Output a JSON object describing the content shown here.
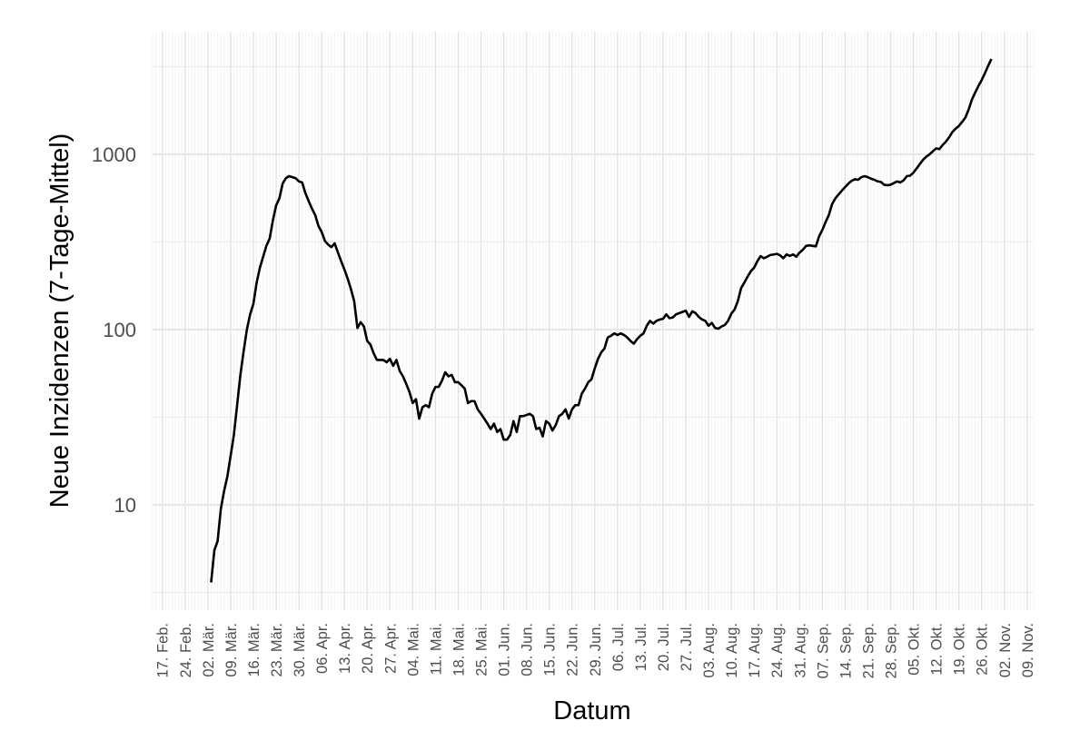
{
  "chart_data": {
    "type": "line",
    "x_label": "Datum",
    "y_label": "Neue Inzidenzen (7-Tage-Mittel)",
    "log_y": true,
    "grid": true,
    "color": "#000000",
    "xlim": [
      "02-14",
      "11-11"
    ],
    "ylim": [
      2.5,
      5000
    ],
    "yticks": [
      10,
      100,
      1000
    ],
    "minor_yticks": [
      3.16,
      31.6,
      316,
      3162
    ],
    "xticks": [
      {
        "value": "02-17",
        "label": "17. Feb."
      },
      {
        "value": "02-24",
        "label": "24. Feb."
      },
      {
        "value": "03-02",
        "label": "02. Mär."
      },
      {
        "value": "03-09",
        "label": "09. Mär."
      },
      {
        "value": "03-16",
        "label": "16. Mär."
      },
      {
        "value": "03-23",
        "label": "23. Mär."
      },
      {
        "value": "03-30",
        "label": "30. Mär."
      },
      {
        "value": "04-06",
        "label": "06. Apr."
      },
      {
        "value": "04-13",
        "label": "13. Apr."
      },
      {
        "value": "04-20",
        "label": "20. Apr."
      },
      {
        "value": "04-27",
        "label": "27. Apr."
      },
      {
        "value": "05-04",
        "label": "04. Mai."
      },
      {
        "value": "05-11",
        "label": "11. Mai."
      },
      {
        "value": "05-18",
        "label": "18. Mai."
      },
      {
        "value": "05-25",
        "label": "25. Mai."
      },
      {
        "value": "06-01",
        "label": "01. Jun."
      },
      {
        "value": "06-08",
        "label": "08. Jun."
      },
      {
        "value": "06-15",
        "label": "15. Jun."
      },
      {
        "value": "06-22",
        "label": "22. Jun."
      },
      {
        "value": "06-29",
        "label": "29. Jun."
      },
      {
        "value": "07-06",
        "label": "06. Jul."
      },
      {
        "value": "07-13",
        "label": "13. Jul."
      },
      {
        "value": "07-20",
        "label": "20. Jul."
      },
      {
        "value": "07-27",
        "label": "27. Jul."
      },
      {
        "value": "08-03",
        "label": "03. Aug."
      },
      {
        "value": "08-10",
        "label": "10. Aug."
      },
      {
        "value": "08-17",
        "label": "17. Aug."
      },
      {
        "value": "08-24",
        "label": "24. Aug."
      },
      {
        "value": "08-31",
        "label": "31. Aug."
      },
      {
        "value": "09-07",
        "label": "07. Sep."
      },
      {
        "value": "09-14",
        "label": "14. Sep."
      },
      {
        "value": "09-21",
        "label": "21. Sep."
      },
      {
        "value": "09-28",
        "label": "28. Sep."
      },
      {
        "value": "10-05",
        "label": "05. Okt."
      },
      {
        "value": "10-12",
        "label": "12. Okt."
      },
      {
        "value": "10-19",
        "label": "19. Okt."
      },
      {
        "value": "10-26",
        "label": "26. Okt."
      },
      {
        "value": "11-02",
        "label": "02. Nov."
      },
      {
        "value": "11-09",
        "label": "09. Nov."
      }
    ],
    "x": [
      "03-03",
      "03-04",
      "03-05",
      "03-06",
      "03-07",
      "03-08",
      "03-09",
      "03-10",
      "03-11",
      "03-12",
      "03-13",
      "03-14",
      "03-15",
      "03-16",
      "03-17",
      "03-18",
      "03-19",
      "03-20",
      "03-21",
      "03-22",
      "03-23",
      "03-24",
      "03-25",
      "03-26",
      "03-27",
      "03-28",
      "03-29",
      "03-30",
      "03-31",
      "04-01",
      "04-02",
      "04-03",
      "04-04",
      "04-05",
      "04-06",
      "04-07",
      "04-08",
      "04-09",
      "04-10",
      "04-11",
      "04-12",
      "04-13",
      "04-14",
      "04-15",
      "04-16",
      "04-17",
      "04-18",
      "04-19",
      "04-20",
      "04-21",
      "04-22",
      "04-23",
      "04-24",
      "04-25",
      "04-26",
      "04-27",
      "04-28",
      "04-29",
      "04-30",
      "05-01",
      "05-02",
      "05-03",
      "05-04",
      "05-05",
      "05-06",
      "05-07",
      "05-08",
      "05-09",
      "05-10",
      "05-11",
      "05-12",
      "05-13",
      "05-14",
      "05-15",
      "05-16",
      "05-17",
      "05-18",
      "05-19",
      "05-20",
      "05-21",
      "05-22",
      "05-23",
      "05-24",
      "05-25",
      "05-26",
      "05-27",
      "05-28",
      "05-29",
      "05-30",
      "05-31",
      "06-01",
      "06-02",
      "06-03",
      "06-04",
      "06-05",
      "06-06",
      "06-07",
      "06-08",
      "06-09",
      "06-10",
      "06-11",
      "06-12",
      "06-13",
      "06-14",
      "06-15",
      "06-16",
      "06-17",
      "06-18",
      "06-19",
      "06-20",
      "06-21",
      "06-22",
      "06-23",
      "06-24",
      "06-25",
      "06-26",
      "06-27",
      "06-28",
      "06-29",
      "06-30",
      "07-01",
      "07-02",
      "07-03",
      "07-04",
      "07-05",
      "07-06",
      "07-07",
      "07-08",
      "07-09",
      "07-10",
      "07-11",
      "07-12",
      "07-13",
      "07-14",
      "07-15",
      "07-16",
      "07-17",
      "07-18",
      "07-19",
      "07-20",
      "07-21",
      "07-22",
      "07-23",
      "07-24",
      "07-25",
      "07-26",
      "07-27",
      "07-28",
      "07-29",
      "07-30",
      "07-31",
      "08-01",
      "08-02",
      "08-03",
      "08-04",
      "08-05",
      "08-06",
      "08-07",
      "08-08",
      "08-09",
      "08-10",
      "08-11",
      "08-12",
      "08-13",
      "08-14",
      "08-15",
      "08-16",
      "08-17",
      "08-18",
      "08-19",
      "08-20",
      "08-21",
      "08-22",
      "08-23",
      "08-24",
      "08-25",
      "08-26",
      "08-27",
      "08-28",
      "08-29",
      "08-30",
      "08-31",
      "09-01",
      "09-02",
      "09-03",
      "09-04",
      "09-05",
      "09-06",
      "09-07",
      "09-08",
      "09-09",
      "09-10",
      "09-11",
      "09-12",
      "09-13",
      "09-14",
      "09-15",
      "09-16",
      "09-17",
      "09-18",
      "09-19",
      "09-20",
      "09-21",
      "09-22",
      "09-23",
      "09-24",
      "09-25",
      "09-26",
      "09-27",
      "09-28",
      "09-29",
      "09-30",
      "10-01",
      "10-02",
      "10-03",
      "10-04",
      "10-05",
      "10-06",
      "10-07",
      "10-08",
      "10-09",
      "10-10",
      "10-11",
      "10-12",
      "10-13",
      "10-14",
      "10-15",
      "10-16",
      "10-17",
      "10-18",
      "10-19",
      "10-20",
      "10-21",
      "10-22",
      "10-23",
      "10-24",
      "10-25",
      "10-26",
      "10-27",
      "10-28",
      "10-29"
    ],
    "values": [
      3.6,
      5.5,
      6.2,
      9.5,
      12,
      14.5,
      19,
      25,
      37,
      55,
      75,
      100,
      122,
      140,
      185,
      225,
      260,
      300,
      330,
      420,
      510,
      560,
      680,
      730,
      750,
      740,
      730,
      700,
      690,
      600,
      540,
      490,
      450,
      390,
      360,
      320,
      305,
      295,
      310,
      275,
      245,
      220,
      195,
      170,
      145,
      102,
      110,
      104,
      86,
      82,
      73,
      67,
      67,
      67,
      65,
      68,
      62,
      67,
      58,
      54,
      49,
      44,
      38,
      40,
      31,
      36,
      37,
      36,
      43,
      47,
      47,
      51,
      57,
      54,
      55,
      50,
      50,
      48,
      46,
      38,
      39,
      39,
      35,
      33,
      31,
      29,
      27,
      29,
      26,
      27,
      23.5,
      23.5,
      25,
      30,
      26,
      32,
      32,
      32.5,
      33,
      32,
      27,
      27.5,
      24.5,
      30,
      29,
      26.5,
      28.5,
      32,
      33,
      35,
      31,
      35,
      37,
      37,
      43,
      46,
      50,
      52,
      60,
      68,
      74,
      78,
      90,
      92,
      95,
      93,
      95,
      93,
      90,
      86,
      83,
      88,
      92,
      95,
      105,
      112,
      108,
      112,
      114,
      115,
      122,
      116,
      117,
      122,
      124,
      126,
      128,
      118,
      127,
      124,
      118,
      114,
      112,
      105,
      109,
      102,
      101,
      104,
      106,
      112,
      123,
      130,
      145,
      172,
      185,
      200,
      215,
      225,
      245,
      262,
      255,
      260,
      266,
      268,
      270,
      265,
      255,
      268,
      263,
      268,
      260,
      275,
      285,
      300,
      302,
      300,
      298,
      340,
      370,
      410,
      450,
      520,
      560,
      590,
      620,
      650,
      680,
      705,
      720,
      715,
      740,
      750,
      740,
      725,
      715,
      700,
      695,
      670,
      665,
      670,
      685,
      700,
      690,
      710,
      750,
      755,
      785,
      830,
      880,
      930,
      970,
      1000,
      1040,
      1080,
      1070,
      1130,
      1180,
      1250,
      1340,
      1400,
      1450,
      1530,
      1620,
      1800,
      2050,
      2250,
      2450,
      2650,
      2900,
      3200,
      3500
    ]
  }
}
